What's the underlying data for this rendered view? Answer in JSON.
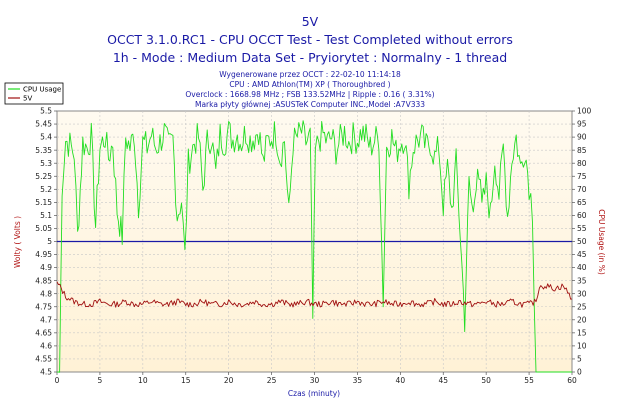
{
  "chart_data": {
    "type": "line",
    "title": "5V",
    "subtitle_lines": [
      "OCCT 3.1.0.RC1 - CPU OCCT Test - Test Completed without errors",
      "1h - Mode : Medium Data Set - Pryiorytet : Normalny - 1 thread"
    ],
    "info_lines": [
      "Wygenerowane przez OCCT : 22-02-10 11:14:18",
      "CPU : AMD Athlon(TM) XP ( Thoroughbred )",
      "Overclock : 1668.98 MHz ; FSB 133.52MHz | Ripple : 0.16 ( 3.31%)",
      "Marka płyty głównej :ASUSTeK Computer INC.,Model :A7V333"
    ],
    "xlabel": "Czas (minuty)",
    "ylabel_left": "Wolty ( Volts )",
    "ylabel_right": "CPU Usage (in %)",
    "xlim": [
      0,
      60
    ],
    "ylim_left": [
      4.5,
      5.5
    ],
    "ylim_right": [
      0,
      100
    ],
    "x_ticks": [
      "0",
      "5",
      "10",
      "15",
      "20",
      "25",
      "30",
      "35",
      "40",
      "45",
      "50",
      "55",
      "60"
    ],
    "y_ticks_left": [
      "5.5",
      "5.45",
      "5.4",
      "5.35",
      "5.3",
      "5.25",
      "5.2",
      "5.15",
      "5.1",
      "5.05",
      "5",
      "4.95",
      "4.9",
      "4.85",
      "4.8",
      "4.75",
      "4.7",
      "4.65",
      "4.6",
      "4.55",
      "4.5"
    ],
    "y_ticks_right": [
      "100",
      "95",
      "90",
      "85",
      "80",
      "75",
      "70",
      "65",
      "60",
      "55",
      "50",
      "45",
      "40",
      "35",
      "30",
      "25",
      "20",
      "15",
      "10",
      "5",
      "0"
    ],
    "reference_line": {
      "value": 5.0,
      "color": "#1a1aa6"
    },
    "grid": true,
    "legend_position": "top-left",
    "series": [
      {
        "name": "CPU Usage",
        "axis": "right",
        "color": "#22dd22",
        "points": [
          [
            0,
            0
          ],
          [
            0.3,
            0
          ],
          [
            0.6,
            72
          ],
          [
            1.0,
            89
          ],
          [
            1.5,
            87
          ],
          [
            2.0,
            84
          ],
          [
            2.4,
            52
          ],
          [
            3.0,
            88
          ],
          [
            3.5,
            86
          ],
          [
            4.0,
            90
          ],
          [
            4.5,
            56
          ],
          [
            5.0,
            86
          ],
          [
            5.6,
            90
          ],
          [
            6.0,
            82
          ],
          [
            6.5,
            88
          ],
          [
            7.0,
            62
          ],
          [
            7.6,
            52
          ],
          [
            8.0,
            90
          ],
          [
            8.5,
            86
          ],
          [
            9.0,
            91
          ],
          [
            9.5,
            64
          ],
          [
            10.0,
            88
          ],
          [
            10.5,
            86
          ],
          [
            11.0,
            91
          ],
          [
            11.5,
            86
          ],
          [
            12.0,
            88
          ],
          [
            12.5,
            92
          ],
          [
            13.0,
            86
          ],
          [
            13.5,
            89
          ],
          [
            14.0,
            60
          ],
          [
            14.5,
            66
          ],
          [
            14.9,
            44
          ],
          [
            15.3,
            80
          ],
          [
            16.0,
            88
          ],
          [
            16.5,
            90
          ],
          [
            17.0,
            70
          ],
          [
            17.5,
            88
          ],
          [
            18.0,
            90
          ],
          [
            18.5,
            76
          ],
          [
            19.0,
            91
          ],
          [
            19.5,
            88
          ],
          [
            20.0,
            92
          ],
          [
            20.5,
            89
          ],
          [
            21.0,
            91
          ],
          [
            21.5,
            88
          ],
          [
            22.0,
            92
          ],
          [
            22.5,
            89
          ],
          [
            23.0,
            90
          ],
          [
            23.5,
            93
          ],
          [
            24.0,
            80
          ],
          [
            24.5,
            88
          ],
          [
            25.0,
            90
          ],
          [
            25.5,
            92
          ],
          [
            26.0,
            82
          ],
          [
            26.5,
            89
          ],
          [
            27.0,
            60
          ],
          [
            27.5,
            88
          ],
          [
            28.0,
            90
          ],
          [
            28.5,
            92
          ],
          [
            29.0,
            88
          ],
          [
            29.5,
            90
          ],
          [
            29.8,
            20
          ],
          [
            30.1,
            84
          ],
          [
            30.5,
            89
          ],
          [
            31.0,
            91
          ],
          [
            31.5,
            88
          ],
          [
            32.0,
            90
          ],
          [
            32.5,
            85
          ],
          [
            33.0,
            89
          ],
          [
            33.5,
            92
          ],
          [
            34.0,
            88
          ],
          [
            34.5,
            90
          ],
          [
            35.0,
            89
          ],
          [
            35.5,
            92
          ],
          [
            36.0,
            90
          ],
          [
            36.5,
            86
          ],
          [
            37.0,
            89
          ],
          [
            37.5,
            90
          ],
          [
            38.0,
            28
          ],
          [
            38.4,
            86
          ],
          [
            39.0,
            90
          ],
          [
            39.5,
            84
          ],
          [
            40.0,
            88
          ],
          [
            40.5,
            90
          ],
          [
            41.0,
            72
          ],
          [
            41.5,
            86
          ],
          [
            42.0,
            89
          ],
          [
            42.5,
            90
          ],
          [
            43.0,
            86
          ],
          [
            43.5,
            88
          ],
          [
            44.0,
            82
          ],
          [
            44.5,
            86
          ],
          [
            45.0,
            64
          ],
          [
            45.5,
            78
          ],
          [
            46.0,
            62
          ],
          [
            46.5,
            80
          ],
          [
            47.0,
            52
          ],
          [
            47.5,
            20
          ],
          [
            48.0,
            72
          ],
          [
            48.5,
            60
          ],
          [
            49.0,
            82
          ],
          [
            49.5,
            62
          ],
          [
            50.0,
            72
          ],
          [
            50.5,
            60
          ],
          [
            51.0,
            82
          ],
          [
            51.5,
            68
          ],
          [
            52.0,
            86
          ],
          [
            52.5,
            60
          ],
          [
            53.0,
            82
          ],
          [
            53.5,
            90
          ],
          [
            54.0,
            78
          ],
          [
            54.5,
            86
          ],
          [
            55.0,
            72
          ],
          [
            55.4,
            62
          ],
          [
            55.8,
            0
          ],
          [
            56.2,
            0
          ],
          [
            60,
            0
          ]
        ]
      },
      {
        "name": "5V",
        "axis": "left",
        "color": "#a01010",
        "points": [
          [
            0,
            4.84
          ],
          [
            0.5,
            4.82
          ],
          [
            1.0,
            4.79
          ],
          [
            2.0,
            4.77
          ],
          [
            3.0,
            4.76
          ],
          [
            4.0,
            4.76
          ],
          [
            5.0,
            4.77
          ],
          [
            6.0,
            4.76
          ],
          [
            7.0,
            4.76
          ],
          [
            8.0,
            4.77
          ],
          [
            9.0,
            4.76
          ],
          [
            10.0,
            4.76
          ],
          [
            11.0,
            4.77
          ],
          [
            12.0,
            4.76
          ],
          [
            13.0,
            4.76
          ],
          [
            14.0,
            4.77
          ],
          [
            15.0,
            4.76
          ],
          [
            16.0,
            4.76
          ],
          [
            17.0,
            4.77
          ],
          [
            18.0,
            4.76
          ],
          [
            19.0,
            4.76
          ],
          [
            20.0,
            4.77
          ],
          [
            21.0,
            4.76
          ],
          [
            22.0,
            4.76
          ],
          [
            23.0,
            4.77
          ],
          [
            24.0,
            4.76
          ],
          [
            25.0,
            4.76
          ],
          [
            26.0,
            4.77
          ],
          [
            27.0,
            4.76
          ],
          [
            28.0,
            4.76
          ],
          [
            29.0,
            4.77
          ],
          [
            30.0,
            4.76
          ],
          [
            31.0,
            4.76
          ],
          [
            32.0,
            4.77
          ],
          [
            33.0,
            4.76
          ],
          [
            34.0,
            4.76
          ],
          [
            35.0,
            4.77
          ],
          [
            36.0,
            4.76
          ],
          [
            37.0,
            4.76
          ],
          [
            38.0,
            4.77
          ],
          [
            39.0,
            4.76
          ],
          [
            40.0,
            4.76
          ],
          [
            41.0,
            4.77
          ],
          [
            42.0,
            4.76
          ],
          [
            43.0,
            4.76
          ],
          [
            44.0,
            4.77
          ],
          [
            45.0,
            4.76
          ],
          [
            46.0,
            4.76
          ],
          [
            47.0,
            4.77
          ],
          [
            48.0,
            4.76
          ],
          [
            49.0,
            4.76
          ],
          [
            50.0,
            4.77
          ],
          [
            51.0,
            4.76
          ],
          [
            52.0,
            4.76
          ],
          [
            53.0,
            4.77
          ],
          [
            54.0,
            4.76
          ],
          [
            55.0,
            4.76
          ],
          [
            55.8,
            4.77
          ],
          [
            56.2,
            4.83
          ],
          [
            57.0,
            4.83
          ],
          [
            58.0,
            4.82
          ],
          [
            59.0,
            4.83
          ],
          [
            60.0,
            4.78
          ]
        ]
      }
    ]
  }
}
